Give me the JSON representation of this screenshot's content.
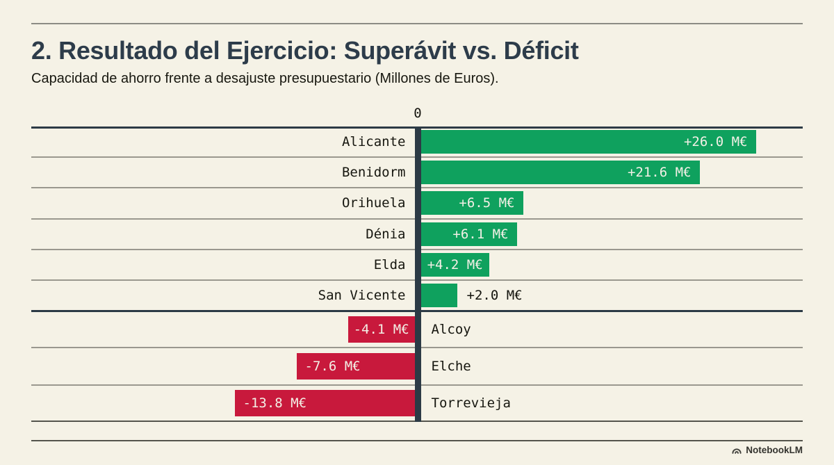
{
  "header": {
    "title": "2. Resultado del Ejercicio: Superávit vs. Déficit",
    "subtitle": "Capacidad de ahorro frente a desajuste presupuestario (Millones de Euros)."
  },
  "chart_data": {
    "type": "bar",
    "orientation": "horizontal-diverging",
    "unit": "M€",
    "zero_label": "0",
    "grid": true,
    "categories": [
      "Alicante",
      "Benidorm",
      "Orihuela",
      "Dénia",
      "Elda",
      "San Vicente",
      "Alcoy",
      "Elche",
      "Torrevieja"
    ],
    "values": [
      26.0,
      21.6,
      6.5,
      6.1,
      4.2,
      2.0,
      -4.1,
      -7.6,
      -13.8
    ],
    "value_labels": [
      "+26.0 M€",
      "+21.6 M€",
      "+6.5 M€",
      "+6.1 M€",
      "+4.2 M€",
      "+2.0 M€",
      "-4.1 M€",
      "-7.6 M€",
      "-13.8 M€"
    ],
    "positive_count": 6,
    "negative_count": 3,
    "colors": {
      "positive_bar": "#0FA15E",
      "negative_bar": "#C8193C",
      "axis": "#2C3A45",
      "gridline": "#9A988E",
      "value_text_inside": "#F3F0E6",
      "value_text_outside": "#14140E",
      "category_text": "#16160F",
      "title_text": "#2D3C4A",
      "background": "#F5F2E6"
    }
  },
  "footer": {
    "brand": "NotebookLM"
  }
}
